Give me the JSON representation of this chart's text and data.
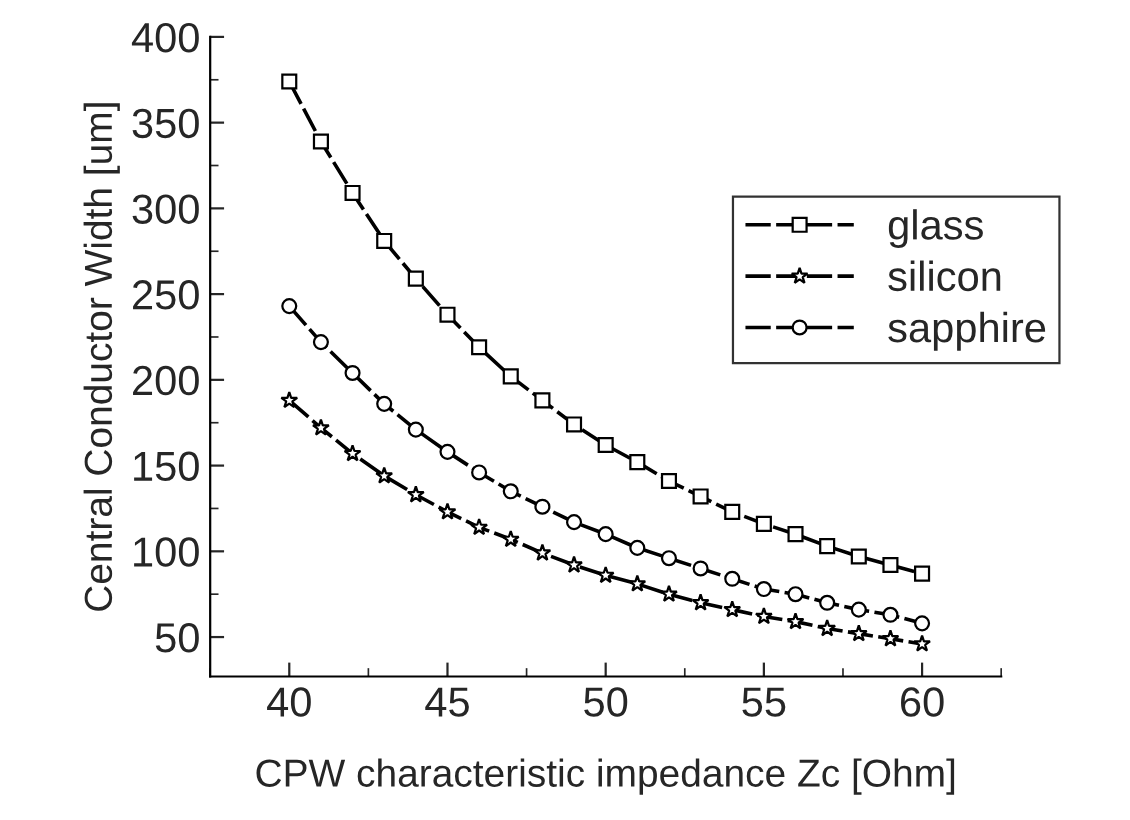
{
  "chart_data": {
    "type": "line",
    "xlabel": "CPW characteristic impedance Zc [Ohm]",
    "ylabel": "Central Conductor Width [um]",
    "x": [
      40,
      41,
      42,
      43,
      44,
      45,
      46,
      47,
      48,
      49,
      50,
      51,
      52,
      53,
      54,
      55,
      56,
      57,
      58,
      59,
      60
    ],
    "series": [
      {
        "name": "glass",
        "color": "#000000",
        "marker": "square",
        "values": [
          374,
          339,
          309,
          281,
          259,
          238,
          219,
          202,
          188,
          174,
          162,
          152,
          141,
          132,
          123,
          116,
          110,
          103,
          97,
          92,
          87
        ]
      },
      {
        "name": "silicon",
        "color": "#000000",
        "marker": "star",
        "values": [
          188,
          172,
          157,
          144,
          133,
          123,
          114,
          107,
          99,
          92,
          86,
          81,
          75,
          70,
          66,
          62,
          59,
          55,
          52,
          49,
          46
        ]
      },
      {
        "name": "sapphire",
        "color": "#000000",
        "marker": "circle",
        "values": [
          243,
          222,
          204,
          186,
          171,
          158,
          146,
          135,
          126,
          117,
          110,
          102,
          96,
          90,
          84,
          78,
          75,
          70,
          66,
          63,
          58
        ]
      }
    ],
    "xlim": [
      37.5,
      62.5
    ],
    "xticks": [
      40,
      45,
      50,
      55,
      60
    ],
    "ylim": [
      27,
      400
    ],
    "yticks": [
      50,
      100,
      150,
      200,
      250,
      300,
      350,
      400
    ],
    "line_style": "dashed",
    "grid": false,
    "legend": "right"
  }
}
